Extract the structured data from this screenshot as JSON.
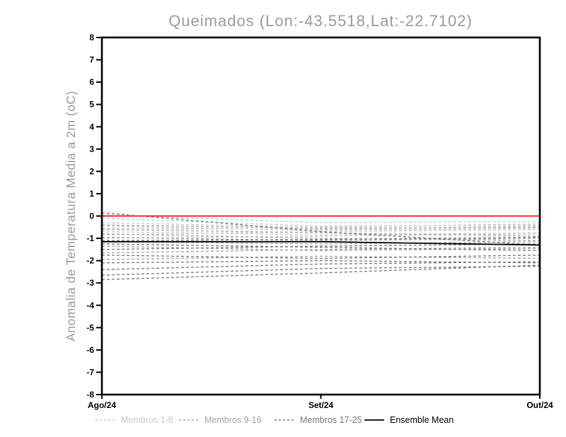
{
  "chart_data": {
    "type": "line",
    "title": "Queimados (Lon:-43.5518,Lat:-22.7102)",
    "ylabel": "Anomalia de Temperatura Media a 2m (oC)",
    "xlabel": "",
    "x_categories": [
      "Ago/24",
      "Set/24",
      "Out/24"
    ],
    "ylim": [
      -8,
      8
    ],
    "ytick_step": 1,
    "ytick_labels": [
      "-8",
      "-7",
      "-6",
      "-5",
      "-4",
      "-3",
      "-2",
      "-1",
      "0",
      "1",
      "2",
      "3",
      "4",
      "5",
      "6",
      "7",
      "8"
    ],
    "grid": false,
    "legend_position": "bottom",
    "colors": {
      "background": "#ffffff",
      "frame": "#000000",
      "tick_label": "#000000",
      "title": "#9a9a9a",
      "axis_label": "#9a9a9a",
      "members_1_8": "#c8c8c8",
      "members_9_16": "#a2a2a2",
      "members_17_25": "#757575",
      "ensemble_mean": "#000000",
      "zero_line": "#fa3c3c"
    },
    "member_groups": [
      {
        "label": "Membros 1-8",
        "line_style": "dashed",
        "color": "#c8c8c8",
        "members": [
          [
            0.05,
            -0.3,
            -0.25
          ],
          [
            -0.1,
            -0.45,
            -0.4
          ],
          [
            -0.3,
            -0.5,
            -0.35
          ],
          [
            -0.45,
            -0.65,
            -0.55
          ],
          [
            -0.55,
            -0.6,
            -0.45
          ],
          [
            -0.7,
            -0.85,
            -0.75
          ],
          [
            -0.85,
            -0.7,
            -0.6
          ],
          [
            -1.0,
            -0.9,
            -0.8
          ]
        ]
      },
      {
        "label": "Membros 9-16",
        "line_style": "dashed",
        "color": "#a2a2a2",
        "members": [
          [
            -0.4,
            -0.55,
            -0.5
          ],
          [
            -0.6,
            -0.75,
            -0.9
          ],
          [
            -0.8,
            -1.0,
            -1.1
          ],
          [
            -0.95,
            -1.1,
            -1.0
          ],
          [
            -1.15,
            -1.25,
            -1.15
          ],
          [
            -1.35,
            -1.55,
            -1.45
          ],
          [
            -1.65,
            -1.5,
            -1.4
          ],
          [
            -1.95,
            -1.8,
            -1.9
          ]
        ]
      },
      {
        "label": "Membros 17-25",
        "line_style": "dashed",
        "color": "#757575",
        "members": [
          [
            0.15,
            -0.7,
            -1.3
          ],
          [
            -1.1,
            -1.05,
            -0.95
          ],
          [
            -1.25,
            -1.4,
            -1.55
          ],
          [
            -1.5,
            -1.35,
            -1.25
          ],
          [
            -1.75,
            -1.9,
            -1.75
          ],
          [
            -2.1,
            -2.0,
            -2.1
          ],
          [
            -2.4,
            -2.15,
            -2.05
          ],
          [
            -2.65,
            -2.35,
            -2.25
          ],
          [
            -2.85,
            -2.55,
            -2.2
          ]
        ]
      }
    ],
    "ensemble_mean": {
      "label": "Ensemble Mean",
      "line_style": "solid",
      "color": "#000000",
      "values": [
        -1.15,
        -1.15,
        -1.3
      ]
    },
    "zero_line": {
      "color": "#fa3c3c",
      "values": [
        0,
        0,
        0
      ]
    },
    "legend": [
      {
        "label": "Membros 1-8",
        "style": "dashed",
        "color": "#c8c8c8"
      },
      {
        "label": "Membros 9-16",
        "style": "dashed",
        "color": "#a2a2a2"
      },
      {
        "label": "Membros 17-25",
        "style": "dashed",
        "color": "#757575"
      },
      {
        "label": "Ensemble Mean",
        "style": "solid",
        "color": "#000000"
      }
    ]
  }
}
